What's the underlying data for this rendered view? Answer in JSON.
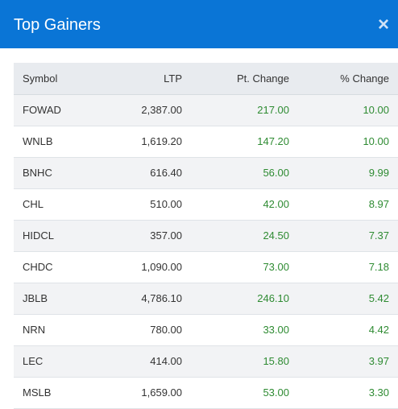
{
  "modal": {
    "title": "Top Gainers",
    "close_label": "×"
  },
  "table": {
    "headers": [
      "Symbol",
      "LTP",
      "Pt. Change",
      "% Change"
    ],
    "rows": [
      {
        "symbol": "FOWAD",
        "ltp": "2,387.00",
        "pt_change": "217.00",
        "pct_change": "10.00"
      },
      {
        "symbol": "WNLB",
        "ltp": "1,619.20",
        "pt_change": "147.20",
        "pct_change": "10.00"
      },
      {
        "symbol": "BNHC",
        "ltp": "616.40",
        "pt_change": "56.00",
        "pct_change": "9.99"
      },
      {
        "symbol": "CHL",
        "ltp": "510.00",
        "pt_change": "42.00",
        "pct_change": "8.97"
      },
      {
        "symbol": "HIDCL",
        "ltp": "357.00",
        "pt_change": "24.50",
        "pct_change": "7.37"
      },
      {
        "symbol": "CHDC",
        "ltp": "1,090.00",
        "pt_change": "73.00",
        "pct_change": "7.18"
      },
      {
        "symbol": "JBLB",
        "ltp": "4,786.10",
        "pt_change": "246.10",
        "pct_change": "5.42"
      },
      {
        "symbol": "NRN",
        "ltp": "780.00",
        "pt_change": "33.00",
        "pct_change": "4.42"
      },
      {
        "symbol": "LEC",
        "ltp": "414.00",
        "pt_change": "15.80",
        "pct_change": "3.97"
      },
      {
        "symbol": "MSLB",
        "ltp": "1,659.00",
        "pt_change": "53.00",
        "pct_change": "3.30"
      }
    ]
  },
  "colors": {
    "header_bg": "#0a75d6",
    "gain_text": "#2e8b32",
    "stripe_bg": "#f2f3f5"
  }
}
